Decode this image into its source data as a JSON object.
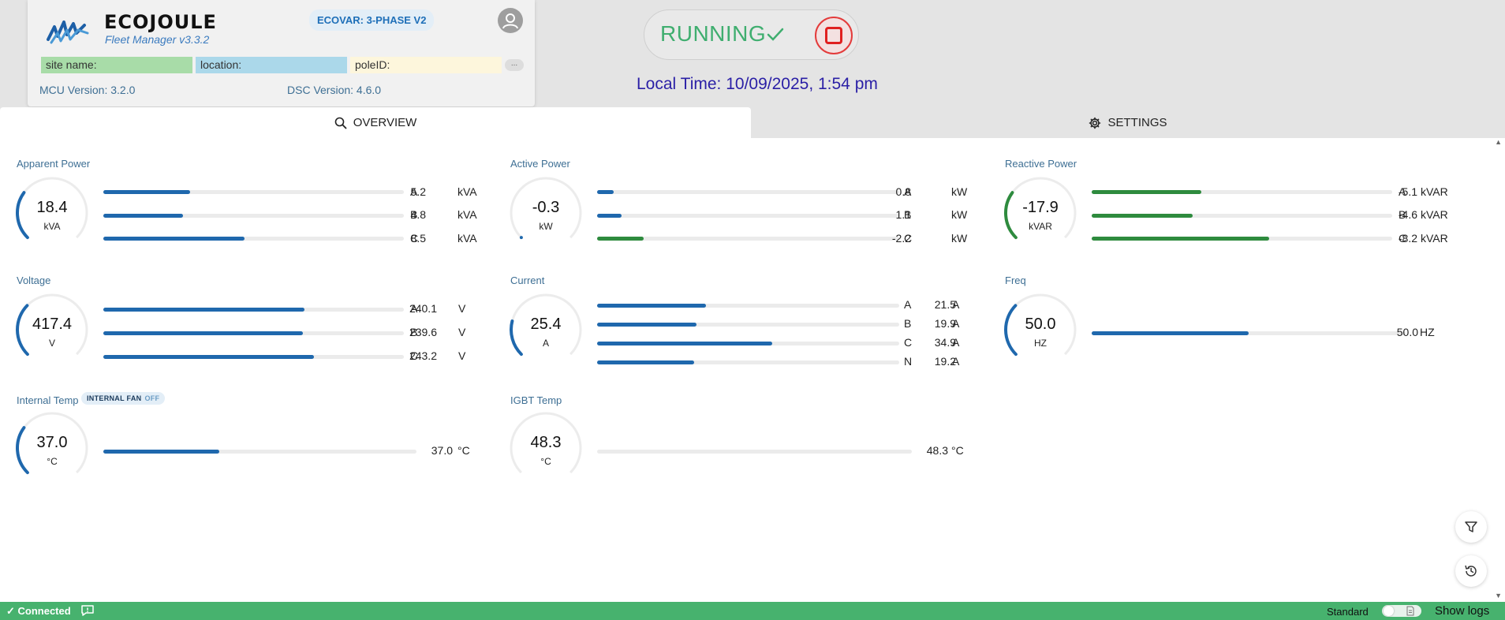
{
  "header": {
    "brand": "ECOJOULE",
    "subtitle": "Fleet Manager v3.3.2",
    "model": "ECOVAR: 3-PHASE V2",
    "site_label": "site name:",
    "location_label": "location:",
    "pole_label": "poleID:",
    "more": "...",
    "mcu_version": "MCU Version: 3.2.0",
    "dsc_version": "DSC Version: 4.6.0"
  },
  "control": {
    "status": "RUNNING",
    "local_time": "Local Time: 10/09/2025, 1:54 pm"
  },
  "tabs": [
    {
      "label": "OVERVIEW",
      "icon": "search-icon"
    },
    {
      "label": "SETTINGS",
      "icon": "gear-icon"
    }
  ],
  "colors": {
    "blue": "#1f68ad",
    "green": "#2e8b3e",
    "status_green": "#47b26e",
    "running_green": "#3fae6f",
    "stop_red": "#e02020"
  },
  "metrics": {
    "apparent": {
      "title": "Apparent Power",
      "value": "18.4",
      "unit": "kVA",
      "gauge_fraction": 0.3,
      "color": "blue",
      "rows": [
        {
          "phase": "A",
          "reading": "5.2",
          "unit": "kVA",
          "fill": 0.29
        },
        {
          "phase": "B",
          "reading": "4.8",
          "unit": "kVA",
          "fill": 0.265
        },
        {
          "phase": "C",
          "reading": "8.5",
          "unit": "kVA",
          "fill": 0.47
        }
      ]
    },
    "active": {
      "title": "Active Power",
      "value": "-0.3",
      "unit": "kW",
      "gauge_fraction": 0.01,
      "color": "blue",
      "rows": [
        {
          "phase": "A",
          "reading": "0.8",
          "unit": "kW",
          "fill": 0.055,
          "color": "blue"
        },
        {
          "phase": "B",
          "reading": "1.1",
          "unit": "kW",
          "fill": 0.08,
          "color": "blue"
        },
        {
          "phase": "C",
          "reading": "-2.2",
          "unit": "kW",
          "fill": 0.155,
          "color": "green"
        }
      ]
    },
    "reactive": {
      "title": "Reactive Power",
      "value": "-17.9",
      "unit": "kVAR",
      "gauge_fraction": 0.3,
      "color": "green",
      "rows": [
        {
          "phase": "A",
          "reading": "-5.1",
          "unit": "kVAR",
          "fill": 0.365
        },
        {
          "phase": "B",
          "reading": "-4.6",
          "unit": "kVAR",
          "fill": 0.335
        },
        {
          "phase": "C",
          "reading": "-8.2",
          "unit": "kVAR",
          "fill": 0.59
        }
      ]
    },
    "voltage": {
      "title": "Voltage",
      "value": "417.4",
      "unit": "V",
      "gauge_fraction": 0.33,
      "color": "blue",
      "rows": [
        {
          "phase": "A",
          "reading": "240.1",
          "unit": "V",
          "fill": 0.67
        },
        {
          "phase": "B",
          "reading": "239.6",
          "unit": "V",
          "fill": 0.665
        },
        {
          "phase": "C",
          "reading": "243.2",
          "unit": "V",
          "fill": 0.7
        }
      ]
    },
    "current": {
      "title": "Current",
      "value": "25.4",
      "unit": "A",
      "gauge_fraction": 0.22,
      "color": "blue",
      "rows": [
        {
          "phase": "A",
          "reading": "21.5",
          "unit": "A",
          "fill": 0.36
        },
        {
          "phase": "B",
          "reading": "19.9",
          "unit": "A",
          "fill": 0.33
        },
        {
          "phase": "C",
          "reading": "34.9",
          "unit": "A",
          "fill": 0.58
        },
        {
          "phase": "N",
          "reading": "19.2",
          "unit": "A",
          "fill": 0.32
        }
      ]
    },
    "freq": {
      "title": "Freq",
      "value": "50.0",
      "unit": "HZ",
      "gauge_fraction": 0.33,
      "color": "blue",
      "rows": [
        {
          "phase": "",
          "reading": "50.0",
          "unit": "HZ",
          "fill": 0.5
        }
      ]
    },
    "internal_temp": {
      "title": "Internal Temp",
      "value": "37.0",
      "unit": "°C",
      "gauge_fraction": 0.3,
      "color": "blue",
      "fan_label": "INTERNAL FAN",
      "fan_state": "OFF",
      "rows": [
        {
          "phase": "",
          "reading": "37.0",
          "unit": "°C",
          "fill": 0.37
        }
      ]
    },
    "igbt_temp": {
      "title": "IGBT Temp",
      "value": "48.3",
      "unit": "°C",
      "gauge_fraction": 0.0,
      "color": "blue",
      "rows": [
        {
          "phase": "",
          "reading": "48.3",
          "unit": "°C",
          "fill": 0.0
        }
      ]
    }
  },
  "statusbar": {
    "connection": "Connected",
    "mode": "Standard",
    "logs": "Show logs"
  }
}
